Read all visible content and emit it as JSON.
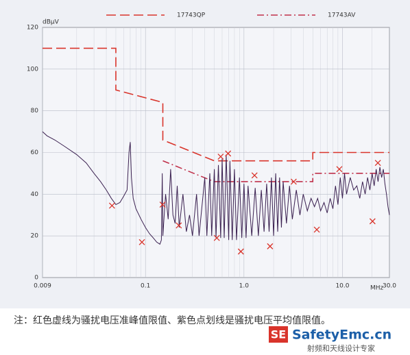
{
  "chart_data": {
    "type": "line",
    "log_x": true,
    "grid": true,
    "minor_grid": true,
    "y_unit": "dBμV",
    "x_unit": "MHz",
    "xlim": [
      0.009,
      30
    ],
    "ylim": [
      0,
      120
    ],
    "xticks": [
      0.009,
      0.1,
      {
        "value": 1,
        "label": "1.0"
      },
      {
        "value": 10,
        "label": "10.0"
      },
      {
        "value": 30,
        "label": "30.0"
      }
    ],
    "yticks": [
      0,
      20,
      40,
      60,
      80,
      100,
      120
    ],
    "series": [
      {
        "name": "17743QP",
        "color": "#d9342b",
        "style": "dashed",
        "legend": true,
        "x": [
          0.009,
          0.05,
          0.05,
          0.15,
          0.15,
          0.5,
          5,
          5,
          30
        ],
        "values": [
          110,
          110,
          90,
          84,
          66,
          56,
          56,
          60,
          60
        ]
      },
      {
        "name": "17743AV",
        "color": "#c0304a",
        "style": "dashdot",
        "legend": true,
        "x": [
          0.15,
          0.5,
          5,
          5,
          30
        ],
        "values": [
          56,
          46,
          46,
          50,
          50
        ]
      },
      {
        "color": "#3a2050",
        "style": "solid",
        "legend": false,
        "x": [
          0.009,
          0.01,
          0.012,
          0.015,
          0.02,
          0.025,
          0.03,
          0.035,
          0.04,
          0.045,
          0.05,
          0.055,
          0.06,
          0.065,
          0.068,
          0.07,
          0.072,
          0.075,
          0.08,
          0.09,
          0.1,
          0.11,
          0.12,
          0.13,
          0.14,
          0.145,
          0.148,
          0.15,
          0.16,
          0.17,
          0.18,
          0.19,
          0.2,
          0.21,
          0.22,
          0.24,
          0.26,
          0.28,
          0.3,
          0.33,
          0.35,
          0.4,
          0.42,
          0.45,
          0.47,
          0.5,
          0.52,
          0.55,
          0.58,
          0.6,
          0.63,
          0.66,
          0.7,
          0.72,
          0.76,
          0.8,
          0.84,
          0.9,
          0.95,
          1.0,
          1.05,
          1.1,
          1.2,
          1.3,
          1.4,
          1.5,
          1.6,
          1.7,
          1.8,
          1.9,
          2.0,
          2.1,
          2.2,
          2.3,
          2.4,
          2.5,
          2.7,
          2.9,
          3.1,
          3.4,
          3.7,
          4.0,
          4.4,
          4.8,
          5.2,
          5.6,
          6.0,
          6.5,
          7,
          7.5,
          8,
          8.5,
          9,
          9.5,
          10,
          10.5,
          11,
          12,
          13,
          14,
          15,
          16,
          17,
          18,
          19,
          20,
          21,
          22,
          23,
          24,
          25,
          26,
          27,
          28,
          29,
          30
        ],
        "values": [
          70,
          68,
          66,
          63,
          59,
          55,
          50,
          46,
          42,
          38,
          35,
          36,
          39,
          42,
          60,
          65,
          48,
          38,
          33,
          28,
          24,
          21,
          19,
          17,
          16,
          18,
          50,
          20,
          40,
          28,
          52,
          30,
          26,
          44,
          24,
          40,
          22,
          30,
          20,
          40,
          20,
          48,
          20,
          50,
          20,
          52,
          19,
          54,
          19,
          57,
          19,
          59,
          18,
          56,
          18,
          52,
          18,
          48,
          19,
          45,
          19,
          44,
          20,
          43,
          20,
          42,
          22,
          45,
          22,
          48,
          20,
          50,
          22,
          48,
          24,
          46,
          26,
          44,
          28,
          42,
          30,
          40,
          32,
          38,
          34,
          38,
          32,
          36,
          31,
          38,
          33,
          44,
          35,
          48,
          38,
          50,
          40,
          48,
          42,
          44,
          38,
          46,
          40,
          48,
          42,
          50,
          44,
          52,
          46,
          53,
          48,
          52,
          45,
          40,
          34,
          30
        ]
      }
    ],
    "markers": {
      "color": "#d9342b",
      "x": [
        0.0457,
        0.092,
        0.149,
        0.218,
        0.53,
        0.58,
        0.69,
        0.93,
        1.28,
        1.84,
        3.2,
        5.49,
        9.3,
        20.2,
        22.9
      ],
      "values": [
        34.5,
        17,
        35,
        25,
        19,
        58,
        59.5,
        12.5,
        49,
        15,
        46,
        23,
        52,
        27,
        55
      ]
    }
  },
  "caption": "注：红色虚线为骚扰电压准峰值限值、紫色点划线是骚扰电压平均值限值。",
  "watermark": {
    "badge": "SE",
    "site": "SafetyEmc.cn",
    "slogan": "射频和天线设计专家"
  }
}
